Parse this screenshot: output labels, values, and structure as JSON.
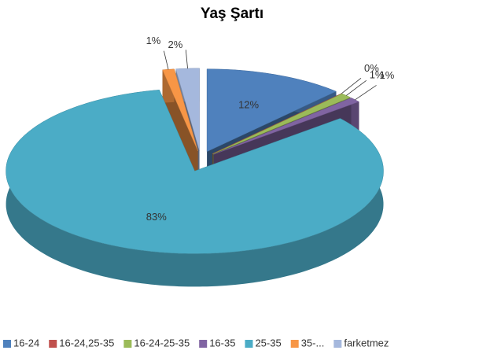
{
  "chart_data": {
    "type": "pie",
    "title": "Yaş Şartı",
    "categories": [
      "16-24",
      "16-24,25-35",
      "16-24-25-35",
      "16-35",
      "25-35",
      "35-...",
      "farketmez"
    ],
    "values": [
      12,
      0,
      1,
      1,
      83,
      1,
      2
    ],
    "value_labels": [
      "12%",
      "0%",
      "1%",
      "1%",
      "83%",
      "1%",
      "2%"
    ],
    "colors": [
      "#4f81bd",
      "#c0504d",
      "#9bbb59",
      "#8064a2",
      "#4bacc6",
      "#f79646",
      "#a5b8dd"
    ],
    "legend": "bottom"
  }
}
